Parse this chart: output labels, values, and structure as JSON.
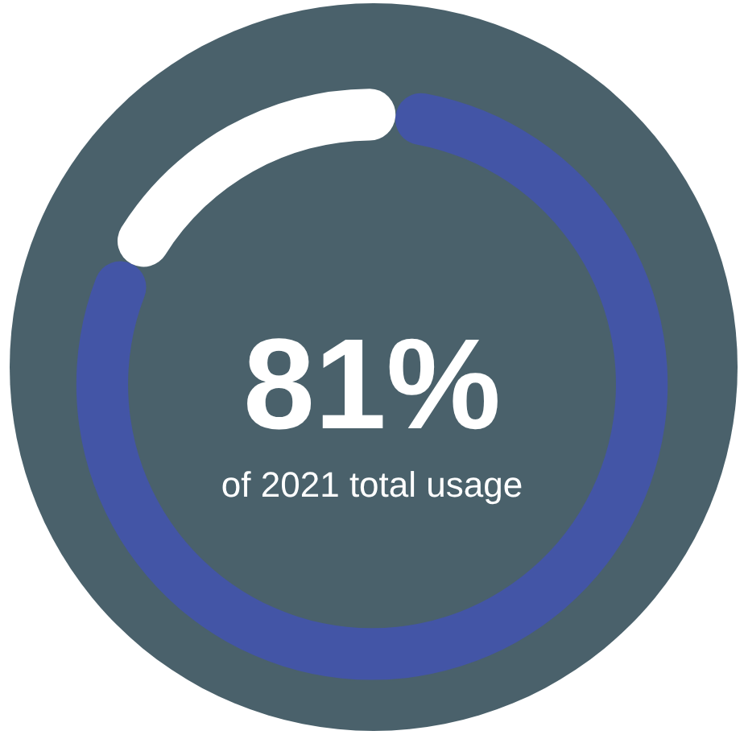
{
  "chart_data": {
    "type": "donut",
    "categories": [
      null,
      null
    ],
    "values": [
      81,
      19
    ],
    "colors": [
      "#4355a6",
      "#ffffff"
    ],
    "value_labels": [
      "81%",
      null
    ],
    "annotations": [
      "of 2021 total usage"
    ]
  }
}
